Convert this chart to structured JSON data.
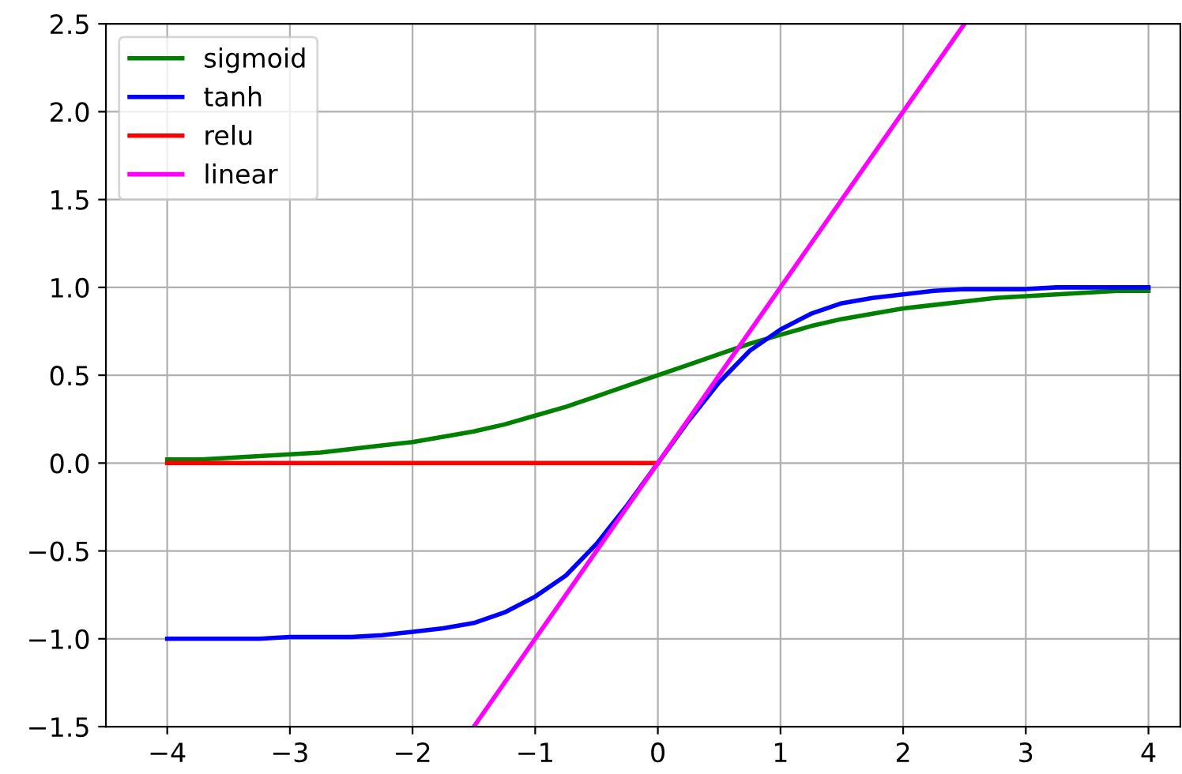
{
  "chart_data": {
    "type": "line",
    "x": [
      -4,
      -3.75,
      -3.5,
      -3.25,
      -3,
      -2.75,
      -2.5,
      -2.25,
      -2,
      -1.75,
      -1.5,
      -1.25,
      -1,
      -0.75,
      -0.5,
      -0.25,
      0,
      0.25,
      0.5,
      0.75,
      1,
      1.25,
      1.5,
      1.75,
      2,
      2.25,
      2.5,
      2.75,
      3,
      3.25,
      3.5,
      3.75,
      4
    ],
    "series": [
      {
        "name": "sigmoid",
        "color": "#008000",
        "values": [
          0.02,
          0.02,
          0.03,
          0.04,
          0.05,
          0.06,
          0.08,
          0.1,
          0.12,
          0.15,
          0.18,
          0.22,
          0.27,
          0.32,
          0.38,
          0.44,
          0.5,
          0.56,
          0.62,
          0.68,
          0.73,
          0.78,
          0.82,
          0.85,
          0.88,
          0.9,
          0.92,
          0.94,
          0.95,
          0.96,
          0.97,
          0.98,
          0.98
        ]
      },
      {
        "name": "tanh",
        "color": "#0000ff",
        "values": [
          -1,
          -1,
          -1,
          -1,
          -0.99,
          -0.99,
          -0.99,
          -0.98,
          -0.96,
          -0.94,
          -0.91,
          -0.85,
          -0.76,
          -0.64,
          -0.46,
          -0.24,
          0,
          0.24,
          0.46,
          0.64,
          0.76,
          0.85,
          0.91,
          0.94,
          0.96,
          0.98,
          0.99,
          0.99,
          0.99,
          1,
          1,
          1,
          1
        ]
      },
      {
        "name": "relu",
        "color": "#ff0000",
        "x": [
          -4,
          0
        ],
        "values": [
          0,
          0
        ]
      },
      {
        "name": "linear",
        "color": "#ff00ff",
        "x": [
          -1.5,
          2.5
        ],
        "values": [
          -1.5,
          2.5
        ]
      }
    ],
    "xlim": [
      -4.5,
      4.26
    ],
    "ylim": [
      -1.5,
      2.5
    ],
    "xticks": [
      {
        "value": -4,
        "label": "−4"
      },
      {
        "value": -3,
        "label": "−3"
      },
      {
        "value": -2,
        "label": "−2"
      },
      {
        "value": -1,
        "label": "−1"
      },
      0,
      1,
      2,
      3,
      4
    ],
    "yticks": [
      {
        "value": -1.5,
        "label": "−1.5"
      },
      {
        "value": -1.0,
        "label": "−1.0"
      },
      {
        "value": -0.5,
        "label": "−0.5"
      },
      {
        "value": 0,
        "label": "0.0"
      },
      {
        "value": 0.5,
        "label": "0.5"
      },
      {
        "value": 1,
        "label": "1.0"
      },
      {
        "value": 1.5,
        "label": "1.5"
      },
      {
        "value": 2,
        "label": "2.0"
      },
      {
        "value": 2.5,
        "label": "2.5"
      }
    ],
    "grid": true,
    "legend": "top left"
  }
}
